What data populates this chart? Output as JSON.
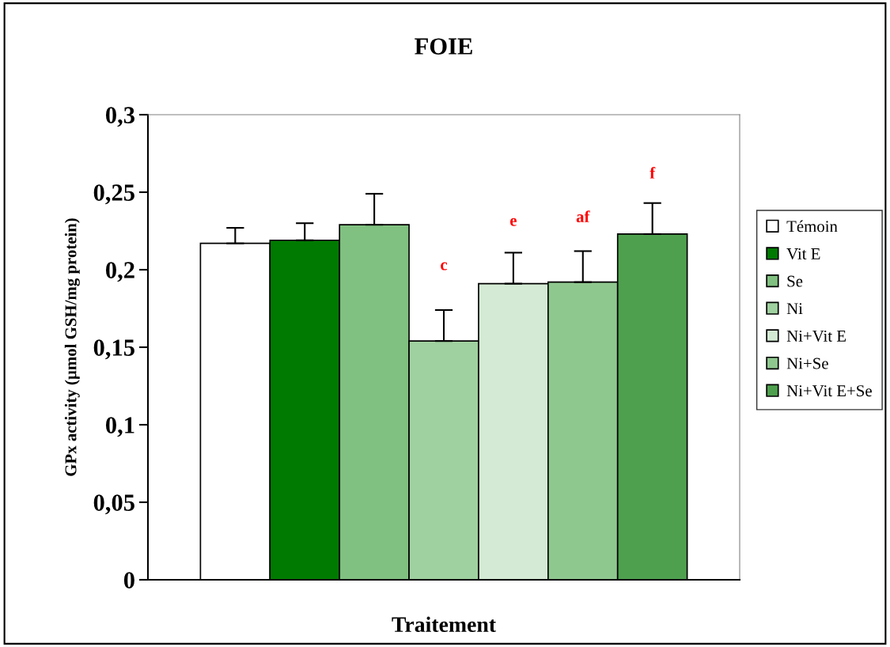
{
  "chart_data": {
    "type": "bar",
    "title": "FOIE",
    "xlabel": "Traitement",
    "ylabel": "GPx activity (µmol GSH/mg protein)",
    "categories": [
      null
    ],
    "series": [
      {
        "name": "Témoin",
        "color": "#ffffff",
        "values": [
          0.217
        ],
        "errors": [
          0.01
        ]
      },
      {
        "name": "Vit E",
        "color": "#007a00",
        "values": [
          0.219
        ],
        "errors": [
          0.011
        ]
      },
      {
        "name": "Se",
        "color": "#80c080",
        "values": [
          0.229
        ],
        "errors": [
          0.02
        ]
      },
      {
        "name": "Ni",
        "color": "#9fd09f",
        "values": [
          0.154
        ],
        "errors": [
          0.02
        ]
      },
      {
        "name": "Ni+Vit E",
        "color": "#d4ead4",
        "values": [
          0.191
        ],
        "errors": [
          0.02
        ]
      },
      {
        "name": "Ni+Se",
        "color": "#8fc88f",
        "values": [
          0.192
        ],
        "errors": [
          0.02
        ]
      },
      {
        "name": "Ni+Vit E+Se",
        "color": "#4ea04e",
        "values": [
          0.223
        ],
        "errors": [
          0.02
        ]
      }
    ],
    "annotations": [
      "c",
      "e",
      "af",
      "f"
    ],
    "ylim": [
      0,
      0.3
    ],
    "yticks": [
      {
        "value": 0,
        "label": "0"
      },
      {
        "value": 0.05,
        "label": "0,05"
      },
      {
        "value": 0.1,
        "label": "0,1"
      },
      {
        "value": 0.15,
        "label": "0,15"
      },
      {
        "value": 0.2,
        "label": "0,2"
      },
      {
        "value": 0.25,
        "label": "0,25"
      },
      {
        "value": 0.3,
        "label": "0,3"
      }
    ],
    "grid": false,
    "legend": "right"
  }
}
